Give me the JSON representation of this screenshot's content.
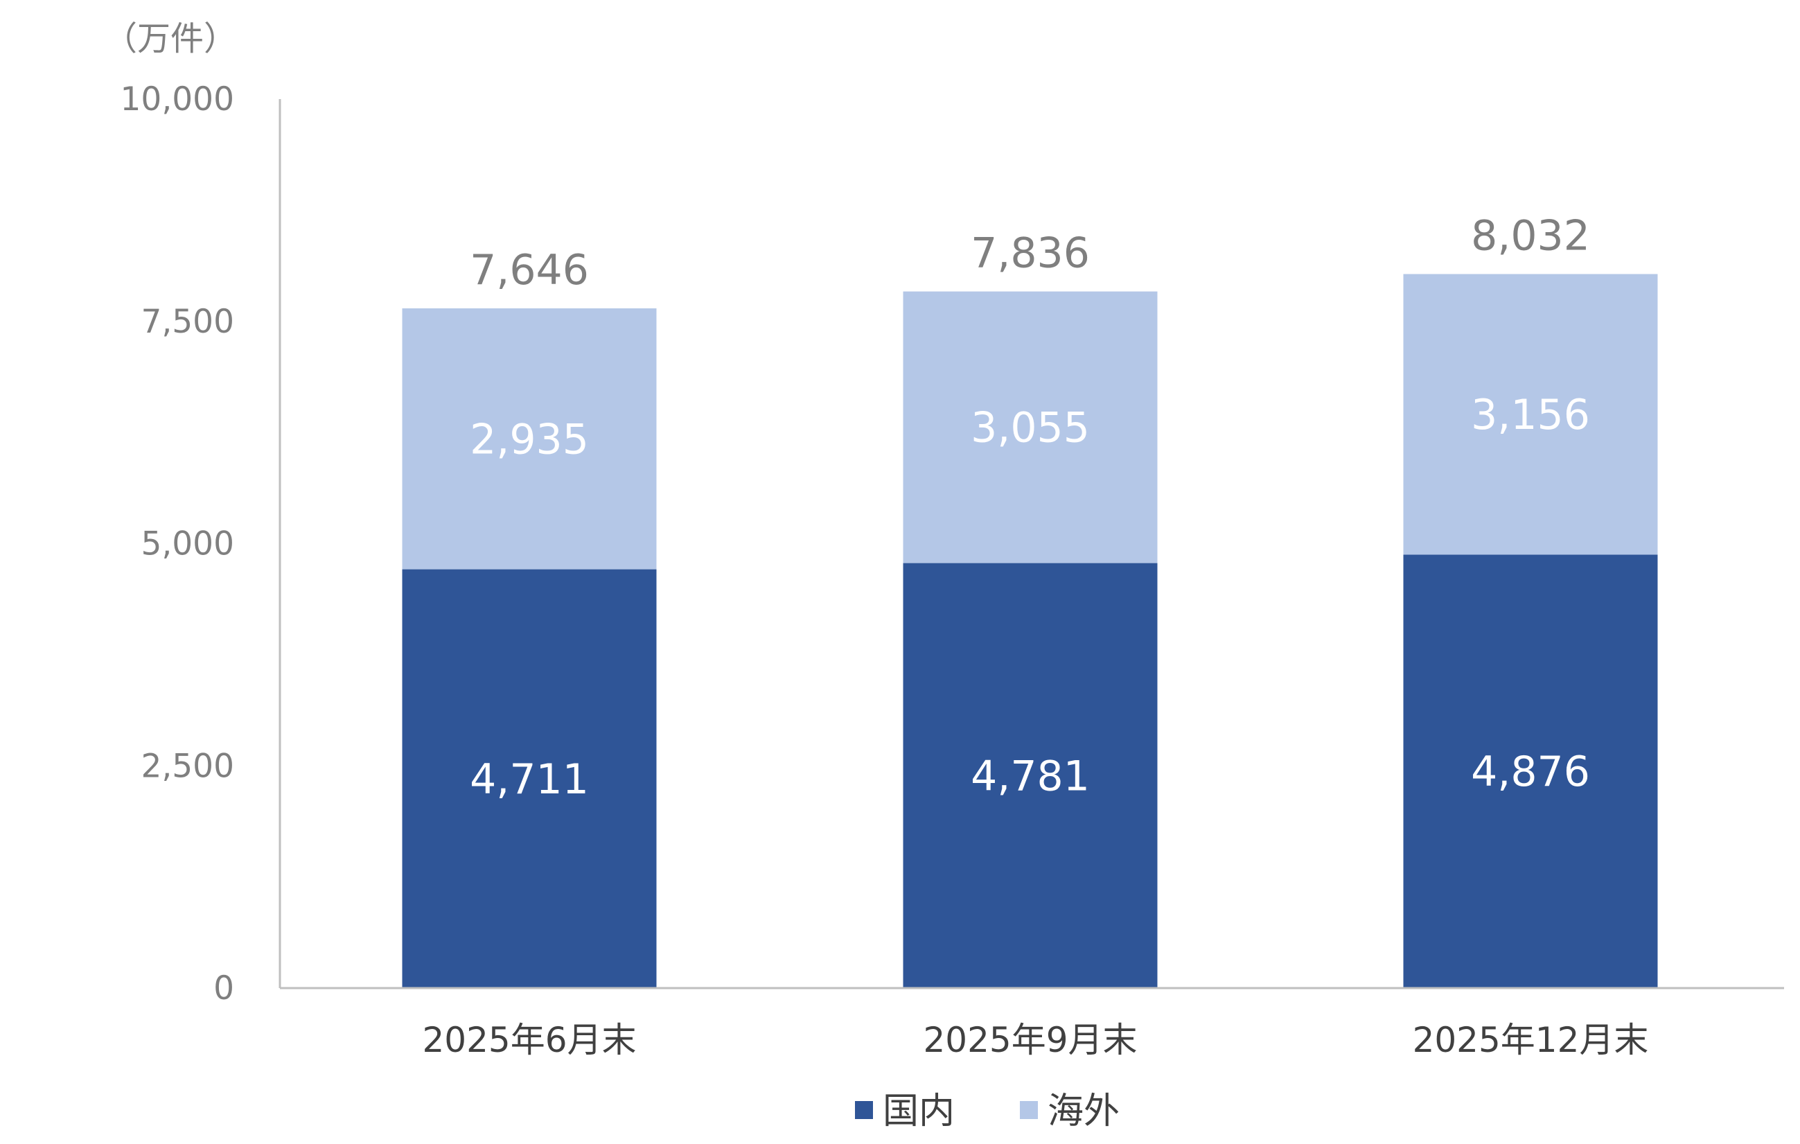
{
  "chart_data": {
    "type": "bar",
    "stacked": true,
    "unit_label": "（万件）",
    "categories": [
      "2025年6月末",
      "2025年9月末",
      "2025年12月末"
    ],
    "series": [
      {
        "name": "国内",
        "values": [
          4711,
          4781,
          4876
        ],
        "labels": [
          "4,711",
          "4,781",
          "4,876"
        ],
        "color": "#2f5597"
      },
      {
        "name": "海外",
        "values": [
          2935,
          3055,
          3156
        ],
        "labels": [
          "2,935",
          "3,055",
          "3,156"
        ],
        "color": "#b4c7e7"
      }
    ],
    "totals": {
      "values": [
        7646,
        7836,
        8032
      ],
      "labels": [
        "7,646",
        "7,836",
        "8,032"
      ]
    },
    "ylim": [
      0,
      10000
    ],
    "yticks": {
      "values": [
        0,
        2500,
        5000,
        7500,
        10000
      ],
      "labels": [
        "0",
        "2,500",
        "5,000",
        "7,500",
        "10,000"
      ]
    },
    "grid": false,
    "legend_position": "bottom-center",
    "axis_color": "#bfbfbf"
  }
}
